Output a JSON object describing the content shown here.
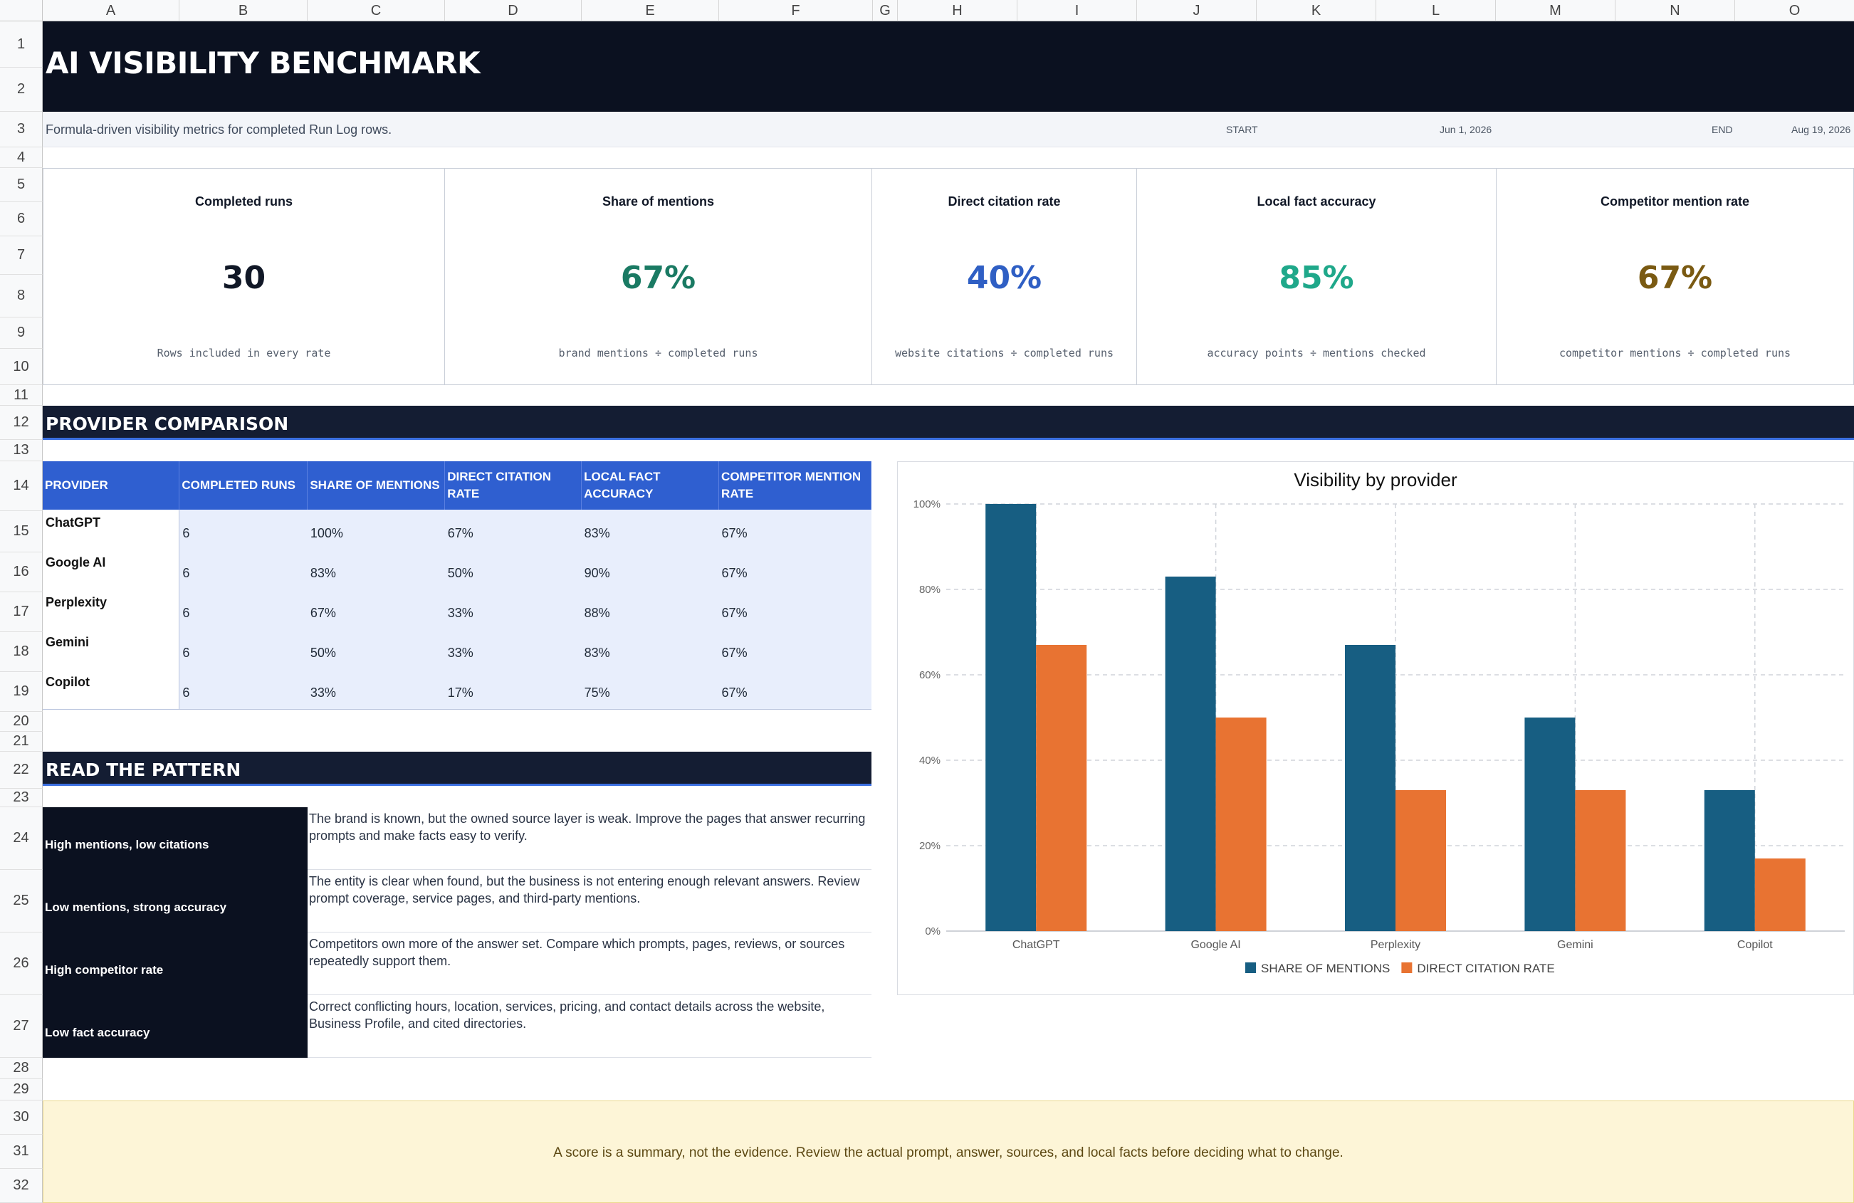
{
  "columns": [
    "A",
    "B",
    "C",
    "D",
    "E",
    "F",
    "G",
    "H",
    "I",
    "J",
    "K",
    "L",
    "M",
    "N",
    "O"
  ],
  "rows": [
    "1",
    "2",
    "3",
    "4",
    "5",
    "6",
    "7",
    "8",
    "9",
    "10",
    "11",
    "12",
    "13",
    "14",
    "15",
    "16",
    "17",
    "18",
    "19",
    "20",
    "21",
    "22",
    "23",
    "24",
    "25",
    "26",
    "27",
    "28",
    "29",
    "30",
    "31",
    "32"
  ],
  "header": {
    "title": "AI VISIBILITY BENCHMARK",
    "subtitle": "Formula-driven visibility metrics for completed Run Log rows.",
    "start_label": "START",
    "start_date": "Jun 1, 2026",
    "end_label": "END",
    "end_date": "Aug 19, 2026"
  },
  "kpis": [
    {
      "label": "Completed runs",
      "value": "30",
      "note": "Rows included in every rate",
      "color": "#111827"
    },
    {
      "label": "Share of mentions",
      "value": "67%",
      "note": "brand mentions ÷ completed runs",
      "color": "#1a7a63"
    },
    {
      "label": "Direct citation rate",
      "value": "40%",
      "note": "website citations ÷ completed runs",
      "color": "#2f5fc4"
    },
    {
      "label": "Local fact accuracy",
      "value": "85%",
      "note": "accuracy points ÷ mentions checked",
      "color": "#1fa88a"
    },
    {
      "label": "Competitor mention rate",
      "value": "67%",
      "note": "competitor mentions ÷ completed runs",
      "color": "#7a5a12"
    }
  ],
  "provider_section": {
    "title": "PROVIDER COMPARISON",
    "headers": [
      "PROVIDER",
      "COMPLETED RUNS",
      "SHARE OF MENTIONS",
      "DIRECT CITATION RATE",
      "LOCAL FACT ACCURACY",
      "COMPETITOR MENTION RATE"
    ],
    "rows": [
      [
        "ChatGPT",
        "6",
        "100%",
        "67%",
        "83%",
        "67%"
      ],
      [
        "Google AI",
        "6",
        "83%",
        "50%",
        "90%",
        "67%"
      ],
      [
        "Perplexity",
        "6",
        "67%",
        "33%",
        "88%",
        "67%"
      ],
      [
        "Gemini",
        "6",
        "50%",
        "33%",
        "83%",
        "67%"
      ],
      [
        "Copilot",
        "6",
        "33%",
        "17%",
        "75%",
        "67%"
      ]
    ]
  },
  "pattern_section": {
    "title": "READ THE PATTERN",
    "rows": [
      {
        "key": "High mentions, low citations",
        "text": "The brand is known, but the owned source layer is weak. Improve the pages that answer recurring prompts and make facts easy to verify."
      },
      {
        "key": "Low mentions, strong accuracy",
        "text": "The entity is clear when found, but the business is not entering enough relevant answers. Review prompt coverage, service pages, and third-party mentions."
      },
      {
        "key": "High competitor rate",
        "text": "Competitors own more of the answer set. Compare which prompts, pages, reviews, or sources repeatedly support them."
      },
      {
        "key": "Low fact accuracy",
        "text": "Correct conflicting hours, location, services, pricing, and contact details across the website, Business Profile, and cited directories."
      }
    ]
  },
  "chart_data": {
    "type": "bar",
    "title": "Visibility by provider",
    "categories": [
      "ChatGPT",
      "Google AI",
      "Perplexity",
      "Gemini",
      "Copilot"
    ],
    "series": [
      {
        "name": "SHARE OF MENTIONS",
        "values": [
          100,
          83,
          67,
          50,
          33
        ],
        "color": "#175e82"
      },
      {
        "name": "DIRECT CITATION RATE",
        "values": [
          67,
          50,
          33,
          33,
          17
        ],
        "color": "#e87332"
      }
    ],
    "yticks": [
      "0%",
      "20%",
      "40%",
      "60%",
      "80%",
      "100%"
    ],
    "ylim": [
      0,
      100
    ],
    "grid": true,
    "legend": "bottom"
  },
  "footer_note": "A score is a summary, not the evidence. Review the actual prompt, answer, sources, and local facts before deciding what to change."
}
